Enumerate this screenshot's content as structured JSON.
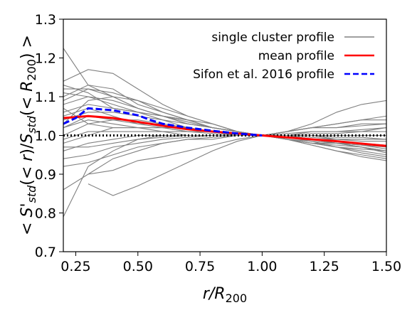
{
  "chart_data": {
    "type": "line",
    "title": "",
    "xlabel": "r/R_200",
    "ylabel": "<S'_std(<r)/S_std(<R_200)>",
    "xlim": [
      0.2,
      1.5
    ],
    "ylim": [
      0.7,
      1.3
    ],
    "x_ticks": [
      "0.25",
      "0.50",
      "0.75",
      "1.00",
      "1.25",
      "1.50"
    ],
    "y_ticks": [
      "0.7",
      "0.8",
      "0.9",
      "1.0",
      "1.1",
      "1.2",
      "1.3"
    ],
    "x_tick_values": [
      0.25,
      0.5,
      0.75,
      1.0,
      1.25,
      1.5
    ],
    "y_tick_values": [
      0.7,
      0.8,
      0.9,
      1.0,
      1.1,
      1.2,
      1.3
    ],
    "grid": false,
    "legend": {
      "position": "top-right",
      "entries": [
        {
          "label": "single cluster profile",
          "color": "#808080",
          "style": "solid"
        },
        {
          "label": "mean profile",
          "color": "#ff0000",
          "style": "solid"
        },
        {
          "label": "Sifon et al. 2016 profile",
          "color": "#0000ff",
          "style": "dashed"
        }
      ]
    },
    "reference_line": {
      "y": 1.0,
      "color": "#000000",
      "style": "dotted"
    },
    "mean_profile": {
      "name": "mean profile",
      "color": "#ff0000",
      "x": [
        0.2,
        0.3,
        0.4,
        0.5,
        0.6,
        0.7,
        0.8,
        0.9,
        1.0,
        1.1,
        1.2,
        1.3,
        1.4,
        1.5
      ],
      "y": [
        1.045,
        1.05,
        1.045,
        1.035,
        1.025,
        1.016,
        1.01,
        1.005,
        1.0,
        0.995,
        0.99,
        0.985,
        0.979,
        0.973
      ]
    },
    "sifon_profile": {
      "name": "Sifon et al. 2016 profile",
      "color": "#0000ff",
      "x": [
        0.2,
        0.25,
        0.3,
        0.4,
        0.5,
        0.55,
        0.6,
        0.7,
        0.8,
        0.9,
        1.0
      ],
      "y": [
        1.03,
        1.045,
        1.07,
        1.065,
        1.052,
        1.04,
        1.03,
        1.02,
        1.012,
        1.005,
        1.0
      ]
    },
    "single_profiles": {
      "color": "#808080",
      "x": [
        0.2,
        0.3,
        0.4,
        0.5,
        0.6,
        0.7,
        0.8,
        0.9,
        1.0,
        1.1,
        1.2,
        1.3,
        1.4,
        1.5
      ],
      "series": [
        [
          1.225,
          1.13,
          1.1,
          1.07,
          1.05,
          1.03,
          1.02,
          1.01,
          1.0,
          0.99,
          0.975,
          0.96,
          0.95,
          0.94
        ],
        [
          0.79,
          0.92,
          0.96,
          0.99,
          1.0,
          1.0,
          1.0,
          1.0,
          1.0,
          1.0,
          1.0,
          1.0,
          1.0,
          1.0
        ],
        [
          0.86,
          0.9,
          0.94,
          0.96,
          0.98,
          0.99,
          0.99,
          1.0,
          1.0,
          1.01,
          1.02,
          1.03,
          1.04,
          1.04
        ],
        [
          1.14,
          1.17,
          1.16,
          1.12,
          1.08,
          1.05,
          1.03,
          1.01,
          1.0,
          0.99,
          0.98,
          0.97,
          0.96,
          0.95
        ],
        [
          1.12,
          1.12,
          1.11,
          1.09,
          1.07,
          1.05,
          1.03,
          1.01,
          1.0,
          0.99,
          0.985,
          0.97,
          0.965,
          0.96
        ],
        [
          1.1,
          1.13,
          1.12,
          1.08,
          1.06,
          1.04,
          1.02,
          1.01,
          1.0,
          1.0,
          0.99,
          0.98,
          0.98,
          0.97
        ],
        [
          1.08,
          1.1,
          1.08,
          1.06,
          1.05,
          1.04,
          1.03,
          1.01,
          1.0,
          0.99,
          0.98,
          0.98,
          0.97,
          0.96
        ],
        [
          1.06,
          1.08,
          1.07,
          1.06,
          1.04,
          1.03,
          1.02,
          1.01,
          1.0,
          1.0,
          0.99,
          0.985,
          0.98,
          0.975
        ],
        [
          1.04,
          1.06,
          1.06,
          1.05,
          1.04,
          1.02,
          1.01,
          1.005,
          1.0,
          0.995,
          0.99,
          0.98,
          0.975,
          0.97
        ],
        [
          1.02,
          1.05,
          1.04,
          1.04,
          1.03,
          1.02,
          1.01,
          1.005,
          1.0,
          1.0,
          1.0,
          0.99,
          0.99,
          0.99
        ],
        [
          1.0,
          1.03,
          1.04,
          1.03,
          1.02,
          1.02,
          1.01,
          1.0,
          1.0,
          1.0,
          1.01,
          1.01,
          1.01,
          1.02
        ],
        [
          0.98,
          1.0,
          1.02,
          1.02,
          1.02,
          1.01,
          1.01,
          1.0,
          1.0,
          1.0,
          1.0,
          1.0,
          1.0,
          1.0
        ],
        [
          0.96,
          0.98,
          0.99,
          1.0,
          1.0,
          1.0,
          1.0,
          1.0,
          1.0,
          1.005,
          1.01,
          1.01,
          1.015,
          1.02
        ],
        [
          0.94,
          0.95,
          0.97,
          0.98,
          0.99,
          0.995,
          1.0,
          1.0,
          1.0,
          1.01,
          1.02,
          1.02,
          1.025,
          1.03
        ],
        [
          0.92,
          0.93,
          0.95,
          0.97,
          0.98,
          0.99,
          0.995,
          1.0,
          1.0,
          1.01,
          1.02,
          1.03,
          1.04,
          1.05
        ],
        [
          null,
          0.875,
          0.845,
          0.87,
          0.9,
          0.93,
          0.96,
          0.985,
          1.0,
          1.01,
          1.02,
          1.02,
          1.03,
          1.03
        ],
        [
          null,
          0.9,
          0.91,
          0.935,
          0.945,
          0.96,
          0.975,
          0.99,
          1.0,
          1.01,
          1.03,
          1.06,
          1.08,
          1.09
        ],
        [
          1.03,
          1.09,
          1.1,
          1.09,
          1.06,
          1.04,
          1.02,
          1.01,
          1.0,
          0.99,
          0.975,
          0.96,
          0.945,
          0.935
        ],
        [
          1.11,
          1.1,
          1.09,
          1.07,
          1.05,
          1.03,
          1.02,
          1.01,
          1.0,
          0.99,
          0.98,
          0.97,
          0.955,
          0.945
        ],
        [
          1.05,
          1.07,
          1.05,
          1.03,
          1.03,
          1.02,
          1.01,
          1.0,
          1.0,
          0.995,
          0.985,
          0.98,
          0.975,
          0.965
        ],
        [
          0.99,
          1.01,
          1.01,
          1.01,
          1.01,
          1.0,
          1.0,
          1.0,
          1.0,
          0.995,
          0.99,
          0.99,
          0.985,
          0.985
        ],
        [
          1.07,
          1.03,
          1.02,
          1.02,
          1.02,
          1.01,
          1.01,
          1.0,
          1.0,
          1.0,
          0.995,
          0.99,
          0.99,
          0.99
        ],
        [
          1.13,
          1.11,
          1.07,
          1.06,
          1.05,
          1.04,
          1.02,
          1.01,
          1.0,
          0.995,
          0.99,
          0.98,
          0.97,
          0.955
        ],
        [
          0.97,
          0.97,
          0.98,
          0.99,
          0.995,
          1.0,
          1.0,
          1.0,
          1.0,
          1.0,
          1.005,
          1.005,
          1.01,
          1.01
        ],
        [
          1.09,
          1.12,
          1.1,
          1.07,
          1.05,
          1.035,
          1.02,
          1.01,
          1.0,
          0.99,
          0.98,
          0.975,
          0.97,
          0.96
        ],
        [
          1.02,
          1.04,
          1.03,
          1.02,
          1.01,
          1.01,
          1.005,
          1.0,
          1.0,
          1.0,
          1.0,
          0.995,
          0.995,
          0.99
        ]
      ]
    }
  }
}
